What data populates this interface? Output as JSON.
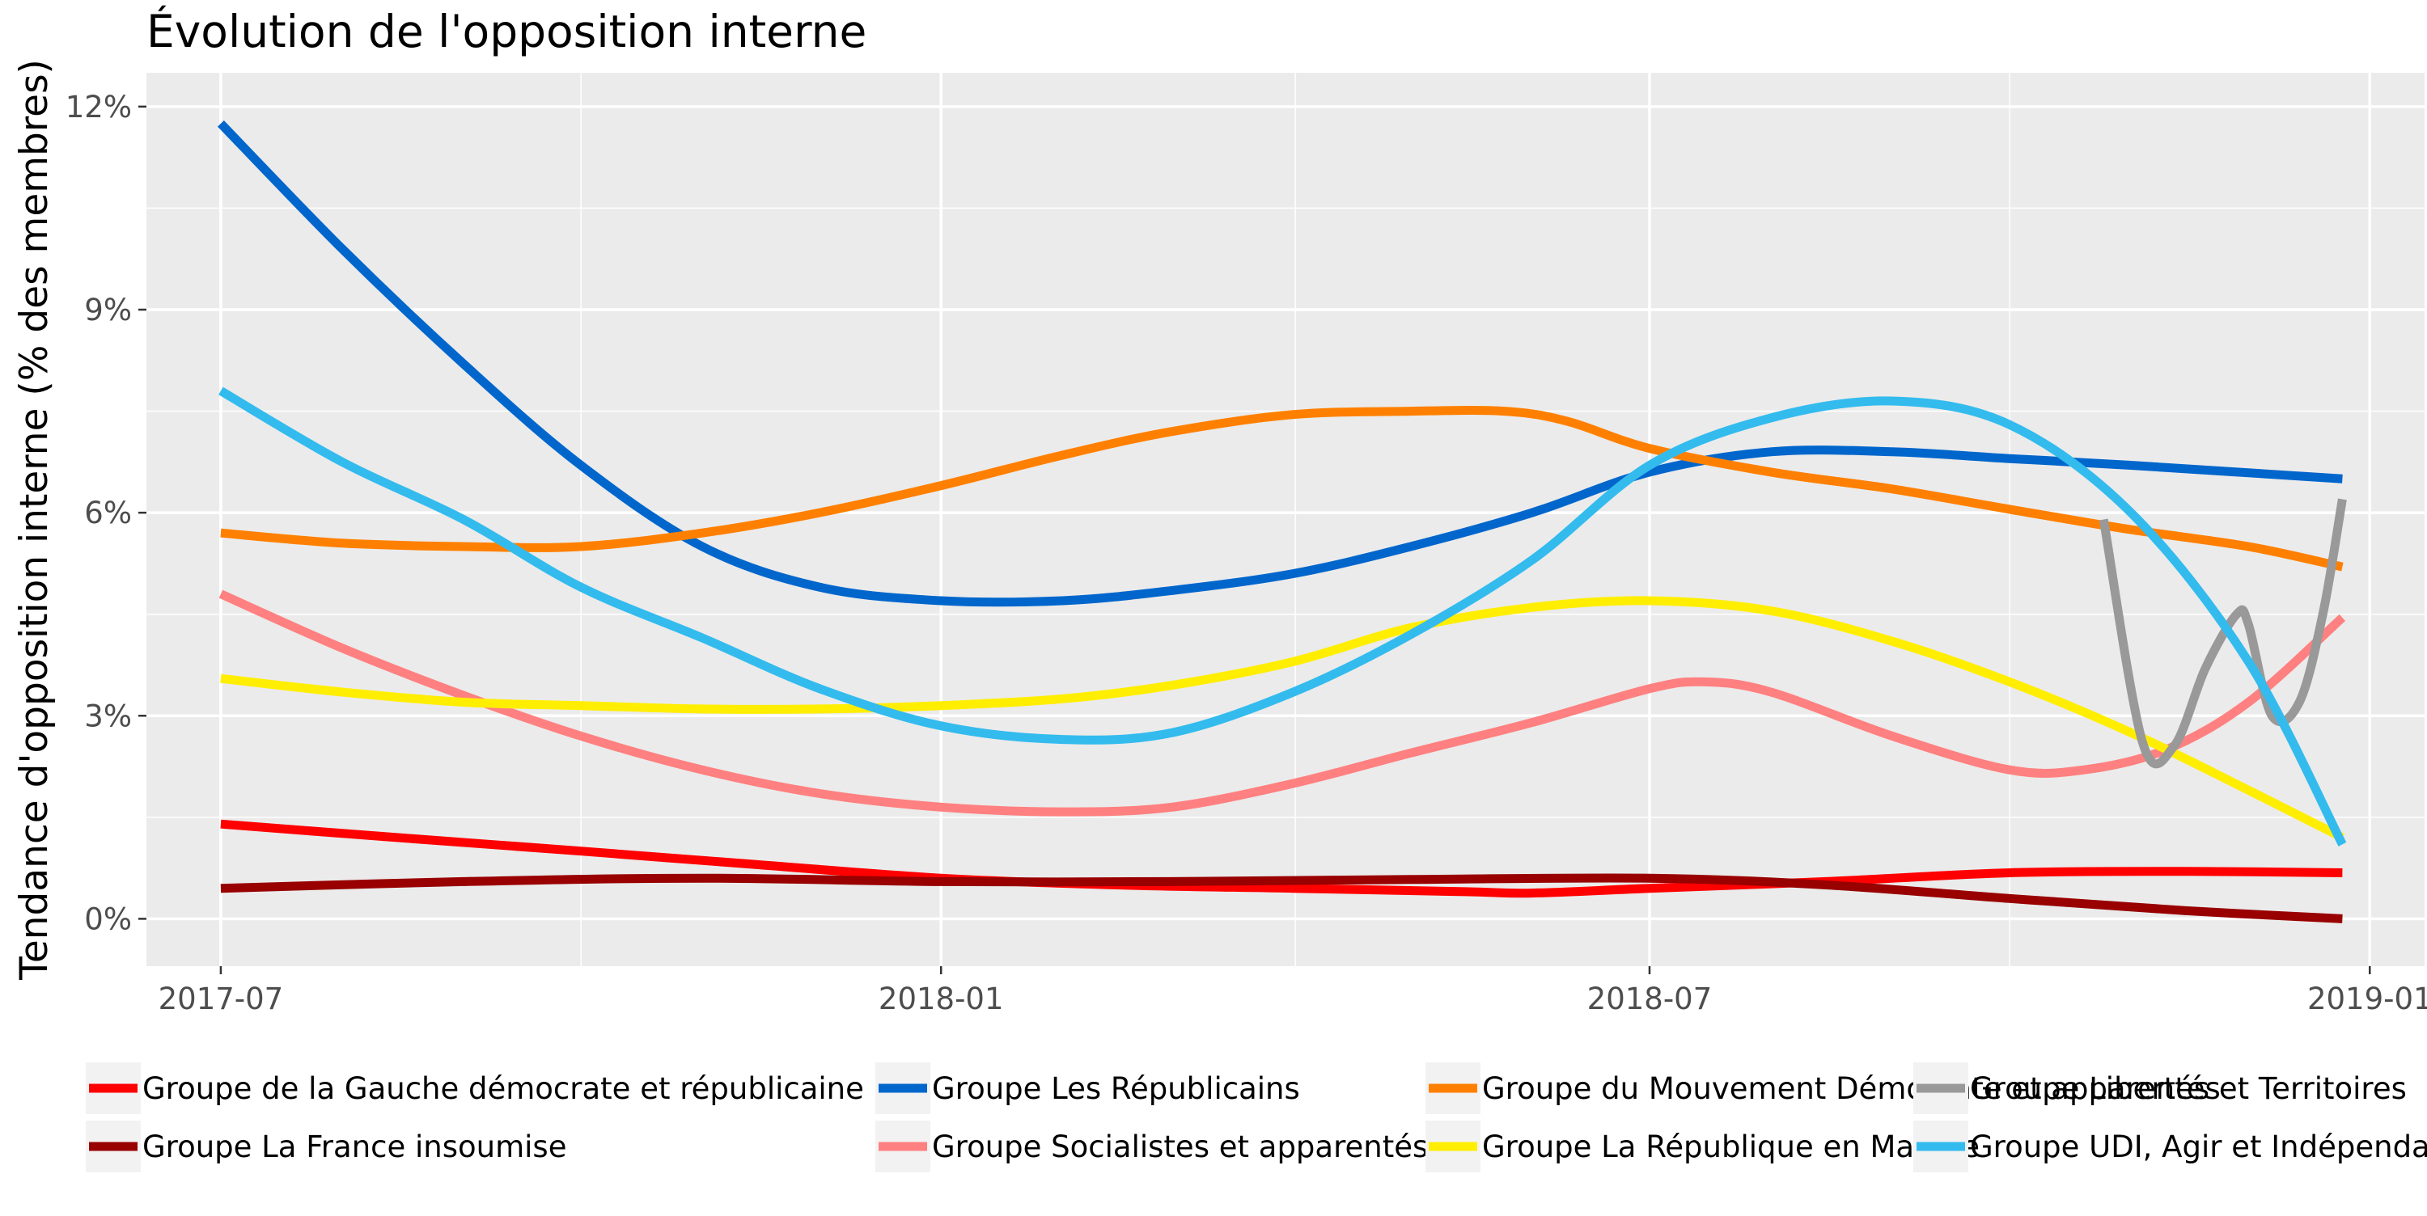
{
  "chart_data": {
    "type": "line",
    "title": "Évolution de l'opposition interne",
    "xlabel": "",
    "ylabel": "Tendance d'opposition interne (% des membres)",
    "x_ticks": [
      "2017-07",
      "2018-01",
      "2018-07",
      "2019-01"
    ],
    "y_ticks": [
      "0%",
      "3%",
      "6%",
      "9%",
      "12%"
    ],
    "xlim": [
      "2017-06-12",
      "2019-01-15"
    ],
    "ylim": [
      -0.7,
      12.5
    ],
    "grid": true,
    "legend_position": "bottom",
    "series": [
      {
        "name": "Groupe de la Gauche démocrate et républicaine",
        "color": "#ff0000",
        "points": [
          [
            "2017-07-01",
            1.4
          ],
          [
            "2017-08-15",
            1.2
          ],
          [
            "2017-10-01",
            1.0
          ],
          [
            "2017-11-15",
            0.8
          ],
          [
            "2018-01-01",
            0.6
          ],
          [
            "2018-02-15",
            0.5
          ],
          [
            "2018-04-01",
            0.45
          ],
          [
            "2018-05-15",
            0.4
          ],
          [
            "2018-06-01",
            0.38
          ],
          [
            "2018-07-01",
            0.45
          ],
          [
            "2018-08-15",
            0.55
          ],
          [
            "2018-10-01",
            0.68
          ],
          [
            "2018-11-15",
            0.7
          ],
          [
            "2018-12-25",
            0.68
          ]
        ]
      },
      {
        "name": "Groupe La France insoumise",
        "color": "#990000",
        "points": [
          [
            "2017-07-01",
            0.45
          ],
          [
            "2017-09-01",
            0.55
          ],
          [
            "2017-11-01",
            0.6
          ],
          [
            "2018-01-01",
            0.55
          ],
          [
            "2018-03-01",
            0.55
          ],
          [
            "2018-05-01",
            0.58
          ],
          [
            "2018-07-01",
            0.6
          ],
          [
            "2018-08-15",
            0.5
          ],
          [
            "2018-10-01",
            0.3
          ],
          [
            "2018-11-15",
            0.12
          ],
          [
            "2018-12-25",
            0.0
          ]
        ]
      },
      {
        "name": "Groupe Les Républicains",
        "color": "#0066cc",
        "points": [
          [
            "2017-07-01",
            11.75
          ],
          [
            "2017-08-01",
            9.9
          ],
          [
            "2017-09-01",
            8.2
          ],
          [
            "2017-10-01",
            6.7
          ],
          [
            "2017-11-01",
            5.5
          ],
          [
            "2017-12-01",
            4.9
          ],
          [
            "2018-01-01",
            4.7
          ],
          [
            "2018-02-01",
            4.7
          ],
          [
            "2018-03-01",
            4.85
          ],
          [
            "2018-04-01",
            5.1
          ],
          [
            "2018-05-01",
            5.5
          ],
          [
            "2018-06-01",
            6.0
          ],
          [
            "2018-07-01",
            6.6
          ],
          [
            "2018-08-01",
            6.9
          ],
          [
            "2018-09-01",
            6.9
          ],
          [
            "2018-10-01",
            6.8
          ],
          [
            "2018-11-01",
            6.7
          ],
          [
            "2018-12-25",
            6.5
          ]
        ]
      },
      {
        "name": "Groupe Socialistes et apparentés",
        "color": "#ff8080",
        "points": [
          [
            "2017-07-01",
            4.8
          ],
          [
            "2017-08-01",
            4.0
          ],
          [
            "2017-09-01",
            3.3
          ],
          [
            "2017-10-01",
            2.7
          ],
          [
            "2017-11-01",
            2.2
          ],
          [
            "2017-12-01",
            1.85
          ],
          [
            "2018-01-01",
            1.65
          ],
          [
            "2018-02-01",
            1.58
          ],
          [
            "2018-03-01",
            1.65
          ],
          [
            "2018-04-01",
            2.0
          ],
          [
            "2018-05-01",
            2.45
          ],
          [
            "2018-06-01",
            2.9
          ],
          [
            "2018-07-01",
            3.4
          ],
          [
            "2018-07-15",
            3.5
          ],
          [
            "2018-08-01",
            3.35
          ],
          [
            "2018-09-01",
            2.7
          ],
          [
            "2018-10-01",
            2.2
          ],
          [
            "2018-10-20",
            2.2
          ],
          [
            "2018-11-10",
            2.5
          ],
          [
            "2018-12-01",
            3.2
          ],
          [
            "2018-12-25",
            4.45
          ]
        ]
      },
      {
        "name": "Groupe du Mouvement Démocrate et apparentés",
        "color": "#ff8000",
        "points": [
          [
            "2017-07-01",
            5.7
          ],
          [
            "2017-08-01",
            5.55
          ],
          [
            "2017-09-01",
            5.5
          ],
          [
            "2017-10-01",
            5.5
          ],
          [
            "2017-11-01",
            5.7
          ],
          [
            "2017-12-01",
            6.0
          ],
          [
            "2018-01-01",
            6.4
          ],
          [
            "2018-02-01",
            6.85
          ],
          [
            "2018-03-01",
            7.2
          ],
          [
            "2018-04-01",
            7.45
          ],
          [
            "2018-05-01",
            7.5
          ],
          [
            "2018-05-25",
            7.5
          ],
          [
            "2018-06-10",
            7.35
          ],
          [
            "2018-07-01",
            6.95
          ],
          [
            "2018-08-01",
            6.6
          ],
          [
            "2018-09-01",
            6.35
          ],
          [
            "2018-10-01",
            6.05
          ],
          [
            "2018-11-01",
            5.75
          ],
          [
            "2018-12-01",
            5.5
          ],
          [
            "2018-12-25",
            5.2
          ]
        ]
      },
      {
        "name": "Groupe La République en Marche",
        "color": "#ffee00",
        "points": [
          [
            "2017-07-01",
            3.55
          ],
          [
            "2017-08-01",
            3.35
          ],
          [
            "2017-09-01",
            3.2
          ],
          [
            "2017-10-01",
            3.15
          ],
          [
            "2017-11-01",
            3.1
          ],
          [
            "2017-12-01",
            3.1
          ],
          [
            "2018-01-01",
            3.15
          ],
          [
            "2018-02-01",
            3.25
          ],
          [
            "2018-03-01",
            3.45
          ],
          [
            "2018-04-01",
            3.8
          ],
          [
            "2018-05-01",
            4.3
          ],
          [
            "2018-06-01",
            4.6
          ],
          [
            "2018-07-01",
            4.7
          ],
          [
            "2018-08-01",
            4.55
          ],
          [
            "2018-09-01",
            4.1
          ],
          [
            "2018-10-01",
            3.5
          ],
          [
            "2018-11-01",
            2.75
          ],
          [
            "2018-12-01",
            1.9
          ],
          [
            "2018-12-25",
            1.2
          ]
        ]
      },
      {
        "name": "Groupe Libertés et Territoires",
        "color": "#999999",
        "points": [
          [
            "2018-10-25",
            5.9
          ],
          [
            "2018-11-04",
            2.6
          ],
          [
            "2018-11-12",
            2.55
          ],
          [
            "2018-11-20",
            3.7
          ],
          [
            "2018-11-28",
            4.5
          ],
          [
            "2018-12-01",
            4.35
          ],
          [
            "2018-12-07",
            3.0
          ],
          [
            "2018-12-14",
            3.2
          ],
          [
            "2018-12-20",
            4.5
          ],
          [
            "2018-12-25",
            6.2
          ]
        ]
      },
      {
        "name": "Groupe UDI, Agir et Indépendants",
        "color": "#33bbee",
        "points": [
          [
            "2017-07-01",
            7.8
          ],
          [
            "2017-08-01",
            6.75
          ],
          [
            "2017-09-01",
            5.9
          ],
          [
            "2017-10-01",
            4.9
          ],
          [
            "2017-11-01",
            4.15
          ],
          [
            "2017-12-01",
            3.4
          ],
          [
            "2018-01-01",
            2.85
          ],
          [
            "2018-02-01",
            2.65
          ],
          [
            "2018-03-01",
            2.75
          ],
          [
            "2018-04-01",
            3.35
          ],
          [
            "2018-05-01",
            4.2
          ],
          [
            "2018-06-01",
            5.3
          ],
          [
            "2018-07-01",
            6.7
          ],
          [
            "2018-08-01",
            7.4
          ],
          [
            "2018-09-01",
            7.65
          ],
          [
            "2018-10-01",
            7.3
          ],
          [
            "2018-11-01",
            6.0
          ],
          [
            "2018-12-01",
            3.8
          ],
          [
            "2018-12-25",
            1.1
          ]
        ]
      }
    ]
  }
}
